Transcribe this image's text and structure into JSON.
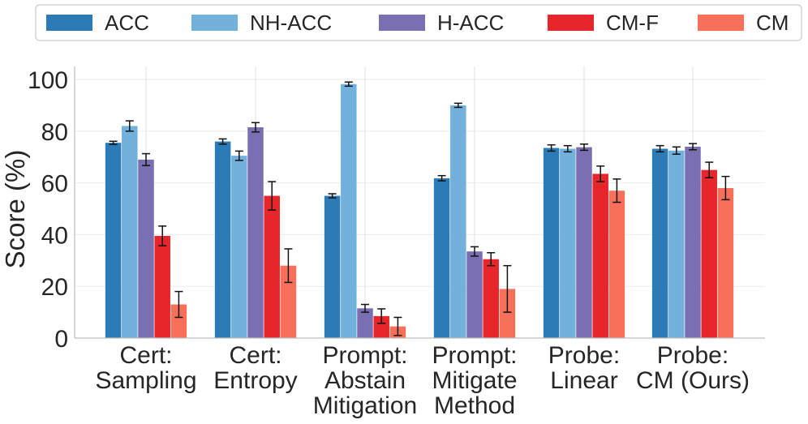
{
  "chart_data": {
    "type": "bar",
    "title": "",
    "xlabel": "",
    "ylabel": "Score (%)",
    "ylim": [
      0,
      100
    ],
    "yticks": [
      0,
      20,
      40,
      60,
      80,
      100
    ],
    "grid": true,
    "legend_position": "top",
    "categories": [
      [
        "Cert:",
        "Sampling"
      ],
      [
        "Cert:",
        "Entropy"
      ],
      [
        "Prompt:",
        "Abstain",
        "Mitigation"
      ],
      [
        "Prompt:",
        "Mitigate",
        "Method"
      ],
      [
        "Probe:",
        "Linear"
      ],
      [
        "Probe:",
        "CM (Ours)"
      ]
    ],
    "series": [
      {
        "name": "ACC",
        "color": "#2c7bb6",
        "values": [
          75.5,
          76.0,
          55.0,
          61.8,
          73.5,
          73.2
        ],
        "errors": [
          0.6,
          1.0,
          0.8,
          1.0,
          1.2,
          1.2
        ]
      },
      {
        "name": "NH-ACC",
        "color": "#72b1dc",
        "values": [
          82.0,
          70.5,
          98.2,
          90.0,
          73.2,
          72.5
        ],
        "errors": [
          2.0,
          1.8,
          0.8,
          0.8,
          1.2,
          1.4
        ]
      },
      {
        "name": "H-ACC",
        "color": "#7b6fb3",
        "values": [
          69.0,
          81.5,
          11.5,
          33.5,
          73.8,
          74.0
        ],
        "errors": [
          2.3,
          1.8,
          1.5,
          1.8,
          1.2,
          1.2
        ]
      },
      {
        "name": "CM-F",
        "color": "#e6262a",
        "values": [
          39.5,
          55.0,
          8.5,
          30.5,
          63.5,
          65.0
        ],
        "errors": [
          3.8,
          5.5,
          2.8,
          2.5,
          3.0,
          3.0
        ]
      },
      {
        "name": "CM",
        "color": "#f9705a",
        "values": [
          13.0,
          28.0,
          4.5,
          19.0,
          57.0,
          58.0
        ],
        "errors": [
          5.0,
          6.5,
          3.5,
          9.0,
          4.5,
          4.5
        ]
      }
    ]
  }
}
